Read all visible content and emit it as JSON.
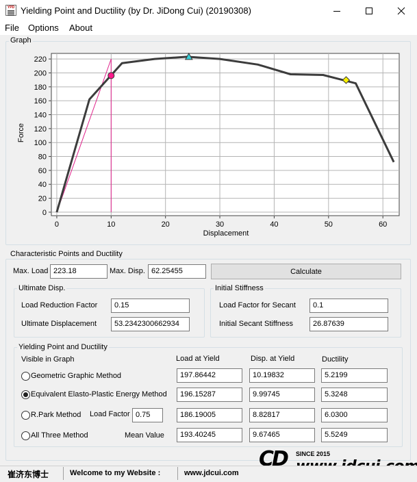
{
  "window": {
    "title": "Yielding Point and Ductility (by Dr. JiDong Cui) (20190308)",
    "icon_text": "YPD"
  },
  "menu": {
    "file": "File",
    "options": "Options",
    "about": "About"
  },
  "graph": {
    "group_label": "Graph",
    "xlabel": "Displacement",
    "ylabel": "Force",
    "x_ticks": [
      "0",
      "10",
      "20",
      "30",
      "40",
      "50",
      "60"
    ],
    "y_ticks": [
      "0",
      "20",
      "40",
      "60",
      "80",
      "100",
      "120",
      "140",
      "160",
      "180",
      "200",
      "220"
    ]
  },
  "chart_data": {
    "type": "line",
    "xlabel": "Displacement",
    "ylabel": "Force",
    "xlim": [
      -1,
      63
    ],
    "ylim": [
      -5,
      228
    ],
    "grid": true,
    "curve": {
      "color": "#3c3c3c",
      "x": [
        0,
        6,
        12,
        18,
        24,
        30,
        37,
        43,
        49,
        55,
        62
      ],
      "y": [
        0,
        162,
        214,
        220,
        223.18,
        220,
        212,
        198,
        197,
        185,
        72
      ]
    },
    "secant_line": {
      "color": "#e0208a",
      "x": [
        0,
        10
      ],
      "y": [
        0,
        220
      ]
    },
    "yield_vertical": {
      "color": "#e0208a",
      "x": 10.0,
      "y": [
        0,
        220
      ]
    },
    "yield_point": {
      "x": 9.99745,
      "y": 196.15287,
      "color": "#ff1a8c"
    },
    "max_point": {
      "x": 24.3,
      "y": 223.18,
      "color": "#38d0d8"
    },
    "ultimate_point": {
      "x": 53.23,
      "y": 189.7,
      "color": "#f8f000"
    }
  },
  "characteristic": {
    "group_label": "Characteristic Points and Ductility",
    "max_load_label": "Max. Load",
    "max_load_value": "223.18",
    "max_disp_label": "Max. Disp.",
    "max_disp_value": "62.25455",
    "calculate_label": "Calculate"
  },
  "ultimate": {
    "group_label": "Ultimate Disp.",
    "factor_label": "Load Reduction Factor",
    "factor_value": "0.15",
    "disp_label": "Ultimate Displacement",
    "disp_value": "53.2342300662934"
  },
  "stiffness": {
    "group_label": "Initial Stiffness",
    "factor_label": "Load Factor for Secant",
    "factor_value": "0.1",
    "secant_label": "Initial Secant Stiffness",
    "secant_value": "26.87639"
  },
  "yielding": {
    "group_label": "Yielding Point and Ductility",
    "visible_label": "Visible in Graph",
    "col_load": "Load at Yield",
    "col_disp": "Disp. at Yield",
    "col_ductility": "Ductility",
    "rows": [
      {
        "label": "Geometric Graphic Method",
        "load": "197.86442",
        "disp": "10.19832",
        "ductility": "5.2199",
        "selected": false
      },
      {
        "label": "Equivalent Elasto-Plastic Energy Method",
        "load": "196.15287",
        "disp": "9.99745",
        "ductility": "5.3248",
        "selected": true
      },
      {
        "label": "R.Park Method",
        "load": "186.19005",
        "disp": "8.82817",
        "ductility": "6.0300",
        "selected": false
      },
      {
        "label": "All Three Method",
        "load": "193.40245",
        "disp": "9.67465",
        "ductility": "5.5249",
        "selected": false
      }
    ],
    "load_factor_label": "Load Factor",
    "load_factor_value": "0.75",
    "mean_label": "Mean Value"
  },
  "status": {
    "author": "崔济东博士",
    "welcome": "Welcome to my Website :",
    "website": "www.jdcui.com"
  },
  "logo": {
    "mark": "CD",
    "since": "SINCE 2015",
    "url": "www.jdcui.com"
  }
}
